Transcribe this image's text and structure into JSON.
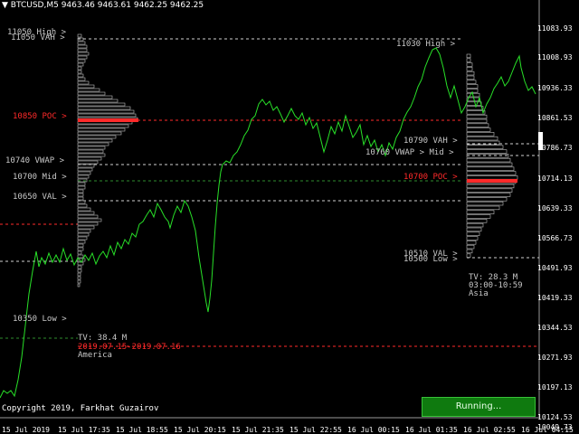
{
  "header": {
    "symbol": "BTCUSD,M5",
    "ohlc": "9463.46 9463.61 9462.25 9462.25"
  },
  "colors": {
    "background": "#000000",
    "price_line": "#28e028",
    "poc": "#ff2a2a",
    "profile": "#bfbfbf",
    "label": "#c8c8c8",
    "button": "#0f7a0f"
  },
  "price_axis": [
    "11083.93",
    "11008.93",
    "10936.33",
    "10861.53",
    "10786.73",
    "10714.13",
    "10639.33",
    "10566.73",
    "10491.93",
    "10419.33",
    "10344.53",
    "10271.93",
    "10197.13",
    "10124.53",
    "10049.73"
  ],
  "time_axis": [
    "15 Jul 2019",
    "15 Jul 17:35",
    "15 Jul 18:55",
    "15 Jul 20:15",
    "15 Jul 21:35",
    "15 Jul 22:55",
    "16 Jul 00:15",
    "16 Jul 01:35",
    "16 Jul 02:55",
    "16 Jul 04:15"
  ],
  "session1": {
    "high": "11050 High",
    "vah": "11050 VAH",
    "poc": "10850 POC",
    "vwap": "10740 VWAP",
    "mid": "10700 Mid",
    "val": "10650 VAL",
    "low": "10350 Low",
    "tv": "TV: 38.4 M",
    "dates": "2019.07.15-2019.07.16",
    "name": "America"
  },
  "session2": {
    "high": "11030 High",
    "vah": "10790 VAH",
    "vwap_mid": "10760 VWAP > Mid",
    "poc": "10700 POC",
    "val": "10510 VAL",
    "low": "10500 Low",
    "tv": "TV: 28.3 M",
    "hours": "03:00-10:59",
    "name": "Asia"
  },
  "copyright": "Copyright 2019, Farkhat Guzairov",
  "status_button": "Running..."
}
